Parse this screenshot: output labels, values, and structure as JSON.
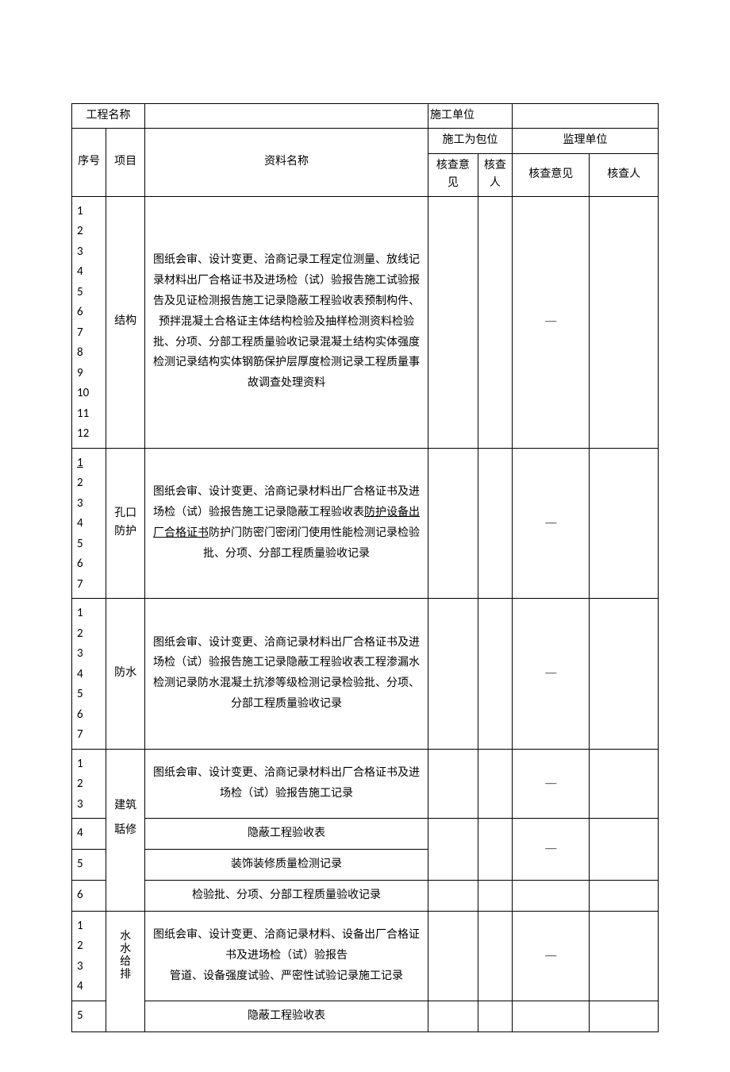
{
  "headers": {
    "proj_name": "工程名称",
    "constr_unit": "施工单位",
    "seq": "序号",
    "item": "项目",
    "material": "资料名称",
    "sub_unit": "施工为包位",
    "supervise_unit": "监理单位",
    "check_opinion": "核查意见",
    "check_person": "核查人",
    "check_person_short": "核查人"
  },
  "rows": [
    {
      "seq": [
        "1",
        "2",
        "3",
        "4",
        "5",
        "6",
        "7",
        "8",
        "9",
        "10",
        "11",
        "12"
      ],
      "seq_underline_first": false,
      "proj": "结构",
      "proj_vertical": false,
      "desc": "图纸会审、设计变更、洽商记录工程定位测量、放线记录材料出厂合格证书及进场检（试）验报告施工试验报告及见证检测报告施工记录隐蔽工程验收表预制构件、预拌混凝土合格证主体结构检验及抽样检测资料检验批、分项、分部工程质量验收记录混凝土结构实体强度检测记录结构实体钢筋保护层厚度检测记录工程质量事故调查处理资料",
      "dash": "—"
    },
    {
      "seq": [
        "1",
        "2",
        "3",
        "4",
        "5",
        "6",
        "7"
      ],
      "seq_underline_first": true,
      "proj": "孔口防护",
      "proj_vertical": false,
      "desc_parts": [
        {
          "t": "图纸会审、设计变更、洽商记录材料出厂合格证书及进场检（试）验报告施工记录隐蔽工程验收表",
          "u": false
        },
        {
          "t": "防护设备出厂合格证书",
          "u": true
        },
        {
          "t": "防护门防密门密闭门使用性能检测记录检验批、分项、分部工程质量验收记录",
          "u": false
        }
      ],
      "dash": "—"
    },
    {
      "seq": [
        "1",
        "2",
        "3",
        "4",
        "5",
        "6",
        "7"
      ],
      "seq_underline_first": false,
      "proj": "防水",
      "proj_vertical": false,
      "desc": "图纸会审、设计变更、洽商记录材料出厂合格证书及进场检（试）验报告施工记录隐蔽工程验收表工程渗漏水检测记录防水混凝土抗渗等级检测记录检验批、分项、分部工程质量验收记录",
      "dash": "—"
    }
  ],
  "arch_group": {
    "proj_top": "建筑",
    "proj_bottom": "聒修",
    "r1": {
      "seq": [
        "1",
        "2",
        "3"
      ],
      "desc": "图纸会审、设计变更、洽商记录材料出厂合格证书及进场检（试）验报告施工记录",
      "dash": "—"
    },
    "r2": {
      "seq": "4",
      "desc": "隐蔽工程验收表"
    },
    "r3": {
      "seq": "5",
      "desc": "装饰装修质量检测记录",
      "dash": "—"
    },
    "r4": {
      "seq": "6",
      "desc": "检验批、分项、分部工程质量验收记录"
    }
  },
  "water_group": {
    "proj": "水水给排",
    "r1": {
      "seq": [
        "1",
        "2",
        "3",
        "4"
      ],
      "desc": "图纸会审、设计变更、洽商记录材料、设备出厂合格证书及进场检（试）验报告\n管道、设备强度试验、严密性试验记录施工记录",
      "dash": "—"
    },
    "r2": {
      "seq": "5",
      "desc": "隐蔽工程验收表"
    }
  },
  "colors": {
    "border": "#000000",
    "bg": "#ffffff",
    "text": "#000000"
  },
  "fonts": {
    "cn_size": 14,
    "seq_size": 15
  }
}
